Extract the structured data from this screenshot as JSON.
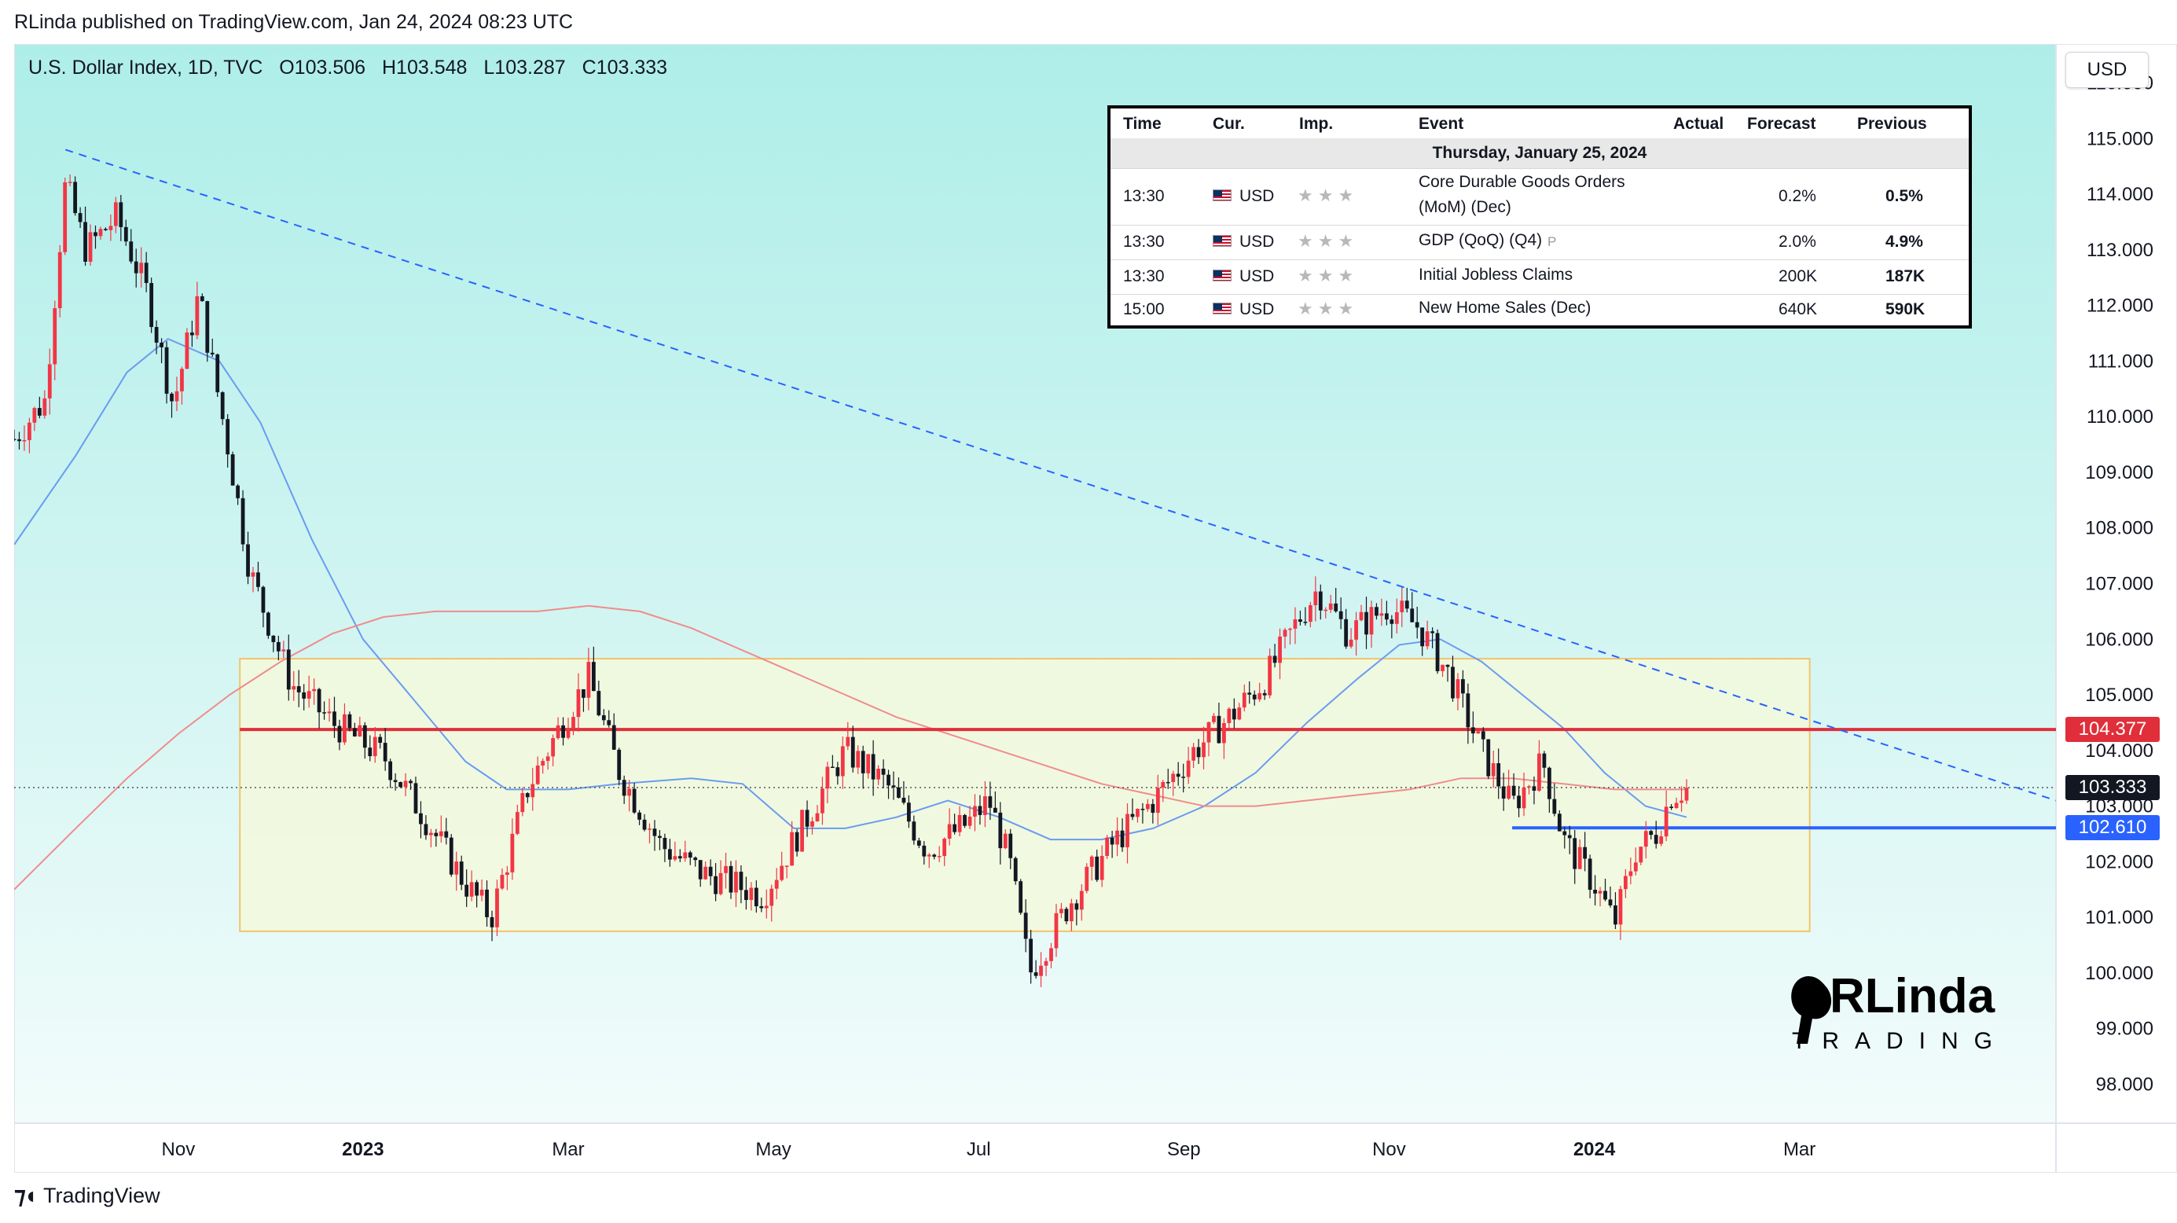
{
  "header": {
    "publish_line": "RLinda published on TradingView.com, Jan 24, 2024 08:23 UTC"
  },
  "symbol": {
    "name": "U.S. Dollar Index, 1D, TVC",
    "open": "O103.506",
    "high": "H103.548",
    "low": "L103.287",
    "close": "C103.333"
  },
  "currency_button": "USD",
  "calendar": {
    "headers": [
      "Time",
      "Cur.",
      "Imp.",
      "Event",
      "Actual",
      "Forecast",
      "Previous"
    ],
    "date": "Thursday, January 25, 2024",
    "rows": [
      {
        "time": "13:30",
        "cur": "USD",
        "event_line1": "Core Durable Goods Orders",
        "event_line2": "(MoM) (Dec)",
        "actual": "",
        "forecast": "0.2%",
        "previous": "0.5%"
      },
      {
        "time": "13:30",
        "cur": "USD",
        "event_line1": "GDP (QoQ) (Q4)",
        "event_line2": "",
        "marker": "P",
        "actual": "",
        "forecast": "2.0%",
        "previous": "4.9%"
      },
      {
        "time": "13:30",
        "cur": "USD",
        "event_line1": "Initial Jobless Claims",
        "event_line2": "",
        "actual": "",
        "forecast": "200K",
        "previous": "187K"
      },
      {
        "time": "15:00",
        "cur": "USD",
        "event_line1": "New Home Sales (Dec)",
        "event_line2": "",
        "actual": "",
        "forecast": "640K",
        "previous": "590K"
      }
    ]
  },
  "price_tags": {
    "resistance": "104.377",
    "current": "103.333",
    "support": "102.610",
    "resistance_color": "#e02f3a",
    "current_color": "#131722",
    "support_color": "#2962ff"
  },
  "brand_logo": {
    "line1": "RLinda",
    "line2": "TRADING"
  },
  "footer": {
    "logo_text": "TradingView"
  },
  "chart_data": {
    "type": "candlestick",
    "title": "U.S. Dollar Index, 1D, TVC",
    "y_axis_labels": [
      "98.000",
      "99.000",
      "100.000",
      "101.000",
      "102.000",
      "103.000",
      "104.000",
      "105.000",
      "106.000",
      "107.000",
      "108.000",
      "109.000",
      "110.000",
      "111.000",
      "112.000",
      "113.000",
      "114.000",
      "115.000",
      "116.000"
    ],
    "x_axis_labels": [
      {
        "label": "Nov",
        "t": 0.5
      },
      {
        "label": "2023",
        "t": 2.3,
        "bold": true
      },
      {
        "label": "Mar",
        "t": 4.3
      },
      {
        "label": "May",
        "t": 6.3
      },
      {
        "label": "Jul",
        "t": 8.3
      },
      {
        "label": "Sep",
        "t": 10.3
      },
      {
        "label": "Nov",
        "t": 12.3
      },
      {
        "label": "2024",
        "t": 14.3,
        "bold": true
      },
      {
        "label": "Mar",
        "t": 16.3
      }
    ],
    "ylim": [
      97.3,
      116.7
    ],
    "xlim": [
      -1.1,
      18.8
    ],
    "colors": {
      "up": "#f23645",
      "down": "#131722",
      "ma_fast": "#6b9bf0",
      "ma_slow": "#f08c8c",
      "trendline": "#2962ff",
      "range_box_fill": "#f3f9dc",
      "range_box_border": "#f2c46a"
    },
    "key_points": [
      {
        "t": -1.1,
        "v": 109.6
      },
      {
        "t": -0.8,
        "v": 110.3
      },
      {
        "t": -0.6,
        "v": 114.2
      },
      {
        "t": -0.4,
        "v": 113.0
      },
      {
        "t": -0.1,
        "v": 113.6
      },
      {
        "t": 0.2,
        "v": 112.2
      },
      {
        "t": 0.45,
        "v": 110.2
      },
      {
        "t": 0.7,
        "v": 112.2
      },
      {
        "t": 1.0,
        "v": 109.3
      },
      {
        "t": 1.2,
        "v": 107.2
      },
      {
        "t": 1.6,
        "v": 105.2
      },
      {
        "t": 2.0,
        "v": 104.5
      },
      {
        "t": 2.5,
        "v": 103.9
      },
      {
        "t": 2.9,
        "v": 102.8
      },
      {
        "t": 3.3,
        "v": 101.6
      },
      {
        "t": 3.55,
        "v": 101.0
      },
      {
        "t": 3.9,
        "v": 103.3
      },
      {
        "t": 4.3,
        "v": 104.7
      },
      {
        "t": 4.5,
        "v": 105.3
      },
      {
        "t": 4.8,
        "v": 103.6
      },
      {
        "t": 5.2,
        "v": 102.3
      },
      {
        "t": 5.6,
        "v": 101.8
      },
      {
        "t": 6.2,
        "v": 101.4
      },
      {
        "t": 6.6,
        "v": 102.7
      },
      {
        "t": 7.0,
        "v": 104.0
      },
      {
        "t": 7.4,
        "v": 103.4
      },
      {
        "t": 7.8,
        "v": 102.2
      },
      {
        "t": 8.2,
        "v": 102.7
      },
      {
        "t": 8.4,
        "v": 103.1
      },
      {
        "t": 8.6,
        "v": 102.0
      },
      {
        "t": 8.8,
        "v": 100.0
      },
      {
        "t": 9.2,
        "v": 101.3
      },
      {
        "t": 9.6,
        "v": 102.3
      },
      {
        "t": 10.0,
        "v": 103.1
      },
      {
        "t": 10.4,
        "v": 104.0
      },
      {
        "t": 10.8,
        "v": 104.7
      },
      {
        "t": 11.1,
        "v": 105.3
      },
      {
        "t": 11.4,
        "v": 106.3
      },
      {
        "t": 11.6,
        "v": 106.9
      },
      {
        "t": 11.9,
        "v": 106.1
      },
      {
        "t": 12.3,
        "v": 106.6
      },
      {
        "t": 12.6,
        "v": 106.2
      },
      {
        "t": 12.9,
        "v": 105.3
      },
      {
        "t": 13.2,
        "v": 104.0
      },
      {
        "t": 13.5,
        "v": 103.0
      },
      {
        "t": 13.8,
        "v": 103.8
      },
      {
        "t": 14.0,
        "v": 102.4
      },
      {
        "t": 14.3,
        "v": 101.6
      },
      {
        "t": 14.5,
        "v": 100.9
      },
      {
        "t": 14.7,
        "v": 102.2
      },
      {
        "t": 14.9,
        "v": 102.5
      },
      {
        "t": 15.05,
        "v": 103.2
      },
      {
        "t": 15.2,
        "v": 103.33
      }
    ],
    "ma_fast": [
      {
        "t": -1.1,
        "v": 107.7
      },
      {
        "t": -0.5,
        "v": 109.3
      },
      {
        "t": 0.0,
        "v": 110.8
      },
      {
        "t": 0.4,
        "v": 111.4
      },
      {
        "t": 0.9,
        "v": 111.0
      },
      {
        "t": 1.3,
        "v": 109.9
      },
      {
        "t": 1.8,
        "v": 107.8
      },
      {
        "t": 2.3,
        "v": 106.0
      },
      {
        "t": 2.8,
        "v": 104.9
      },
      {
        "t": 3.3,
        "v": 103.8
      },
      {
        "t": 3.7,
        "v": 103.3
      },
      {
        "t": 4.3,
        "v": 103.3
      },
      {
        "t": 4.8,
        "v": 103.4
      },
      {
        "t": 5.5,
        "v": 103.5
      },
      {
        "t": 6.0,
        "v": 103.4
      },
      {
        "t": 6.5,
        "v": 102.6
      },
      {
        "t": 7.0,
        "v": 102.6
      },
      {
        "t": 7.5,
        "v": 102.8
      },
      {
        "t": 8.0,
        "v": 103.1
      },
      {
        "t": 8.5,
        "v": 102.8
      },
      {
        "t": 9.0,
        "v": 102.4
      },
      {
        "t": 9.5,
        "v": 102.4
      },
      {
        "t": 10.0,
        "v": 102.6
      },
      {
        "t": 10.5,
        "v": 103.0
      },
      {
        "t": 11.0,
        "v": 103.6
      },
      {
        "t": 11.5,
        "v": 104.5
      },
      {
        "t": 12.0,
        "v": 105.3
      },
      {
        "t": 12.4,
        "v": 105.9
      },
      {
        "t": 12.8,
        "v": 106.0
      },
      {
        "t": 13.2,
        "v": 105.6
      },
      {
        "t": 13.6,
        "v": 105.0
      },
      {
        "t": 14.0,
        "v": 104.4
      },
      {
        "t": 14.4,
        "v": 103.6
      },
      {
        "t": 14.8,
        "v": 103.0
      },
      {
        "t": 15.2,
        "v": 102.8
      }
    ],
    "ma_slow": [
      {
        "t": -1.1,
        "v": 101.5
      },
      {
        "t": -0.5,
        "v": 102.6
      },
      {
        "t": 0.0,
        "v": 103.5
      },
      {
        "t": 0.5,
        "v": 104.3
      },
      {
        "t": 1.0,
        "v": 105.0
      },
      {
        "t": 1.5,
        "v": 105.6
      },
      {
        "t": 2.0,
        "v": 106.1
      },
      {
        "t": 2.5,
        "v": 106.4
      },
      {
        "t": 3.0,
        "v": 106.5
      },
      {
        "t": 3.5,
        "v": 106.5
      },
      {
        "t": 4.0,
        "v": 106.5
      },
      {
        "t": 4.5,
        "v": 106.6
      },
      {
        "t": 5.0,
        "v": 106.5
      },
      {
        "t": 5.5,
        "v": 106.2
      },
      {
        "t": 6.0,
        "v": 105.8
      },
      {
        "t": 6.5,
        "v": 105.4
      },
      {
        "t": 7.0,
        "v": 105.0
      },
      {
        "t": 7.5,
        "v": 104.6
      },
      {
        "t": 8.0,
        "v": 104.3
      },
      {
        "t": 8.5,
        "v": 104.0
      },
      {
        "t": 9.0,
        "v": 103.7
      },
      {
        "t": 9.5,
        "v": 103.4
      },
      {
        "t": 10.0,
        "v": 103.2
      },
      {
        "t": 10.5,
        "v": 103.0
      },
      {
        "t": 11.0,
        "v": 103.0
      },
      {
        "t": 11.5,
        "v": 103.1
      },
      {
        "t": 12.0,
        "v": 103.2
      },
      {
        "t": 12.5,
        "v": 103.3
      },
      {
        "t": 13.0,
        "v": 103.5
      },
      {
        "t": 13.5,
        "v": 103.5
      },
      {
        "t": 14.0,
        "v": 103.4
      },
      {
        "t": 14.5,
        "v": 103.3
      },
      {
        "t": 15.2,
        "v": 103.3
      }
    ],
    "trendline": {
      "t1": -0.6,
      "v1": 114.8,
      "t2": 18.8,
      "v2": 103.1
    },
    "range_box": {
      "t1": 1.1,
      "t2": 16.4,
      "v_low": 100.75,
      "v_high": 105.65
    },
    "levels": [
      {
        "name": "resistance",
        "value": 104.377,
        "t_start": 1.1,
        "color": "#e02f3a"
      },
      {
        "name": "support",
        "value": 102.61,
        "t_start": 13.5,
        "color": "#2962ff"
      },
      {
        "name": "current",
        "value": 103.333,
        "t_start": -1.1,
        "color": "#555555",
        "dotted": true
      }
    ]
  }
}
